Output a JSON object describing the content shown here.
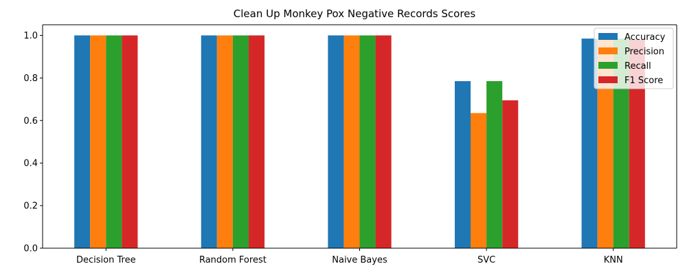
{
  "chart_data": {
    "type": "bar",
    "title": "Clean Up Monkey Pox Negative Records Scores",
    "xlabel": "",
    "ylabel": "",
    "categories": [
      "Decision Tree",
      "Random Forest",
      "Naive Bayes",
      "SVC",
      "KNN"
    ],
    "series": [
      {
        "name": "Accuracy",
        "color": "#1f77b4",
        "values": [
          1.0,
          1.0,
          1.0,
          0.785,
          0.985
        ]
      },
      {
        "name": "Precision",
        "color": "#ff7f0e",
        "values": [
          1.0,
          1.0,
          1.0,
          0.635,
          0.98
        ]
      },
      {
        "name": "Recall",
        "color": "#2ca02c",
        "values": [
          1.0,
          1.0,
          1.0,
          0.785,
          0.985
        ]
      },
      {
        "name": "F1 Score",
        "color": "#d62728",
        "values": [
          1.0,
          1.0,
          1.0,
          0.695,
          0.98
        ]
      }
    ],
    "ylim": [
      0,
      1.05
    ],
    "yticks": [
      "0.0",
      "0.2",
      "0.4",
      "0.6",
      "0.8",
      "1.0"
    ],
    "grid": false,
    "legend_position": "top-right"
  }
}
